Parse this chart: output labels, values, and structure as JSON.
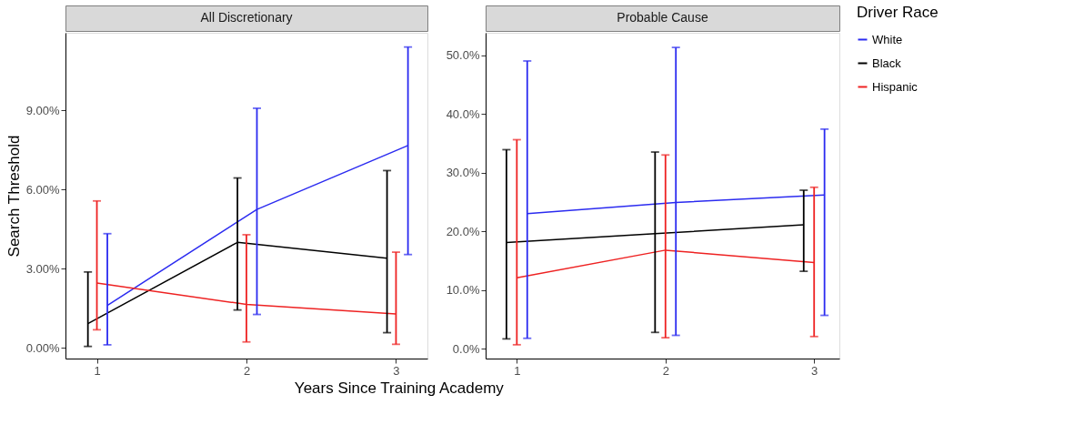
{
  "chart_data": [
    {
      "type": "line",
      "title": "All Discretionary",
      "xlabel": "Years Since Training Academy",
      "ylabel": "Search Threshold",
      "x": [
        1,
        2,
        3
      ],
      "xlim": [
        0.79,
        3.21
      ],
      "xticks": [
        1,
        2,
        3
      ],
      "ylim": [
        -0.4,
        11.94
      ],
      "yticks": [
        {
          "value": 0,
          "label": "0.00%"
        },
        {
          "value": 3,
          "label": "3.00%"
        },
        {
          "value": 6,
          "label": "6.00%"
        },
        {
          "value": 9,
          "label": "9.00%"
        }
      ],
      "grid": false,
      "legend_title": "Driver Race",
      "legend": "right",
      "series": [
        {
          "name": "White",
          "color": "#2b2bf0",
          "x": [
            1.07,
            2.07,
            3.08
          ],
          "values": [
            1.61,
            5.25,
            7.67
          ],
          "errors": [
            [
              0.12,
              4.33
            ],
            [
              1.27,
              9.08
            ],
            [
              3.54,
              11.4
            ]
          ]
        },
        {
          "name": "Black",
          "color": "#000000",
          "x": [
            0.94,
            1.94,
            2.94
          ],
          "values": [
            0.92,
            4.0,
            3.4
          ],
          "errors": [
            [
              0.06,
              2.88
            ],
            [
              1.44,
              6.44
            ],
            [
              0.58,
              6.72
            ]
          ]
        },
        {
          "name": "Hispanic",
          "color": "#ee2222",
          "values": [
            2.46,
            1.65,
            1.29
          ],
          "errors": [
            [
              0.69,
              5.57
            ],
            [
              0.23,
              4.29
            ],
            [
              0.14,
              3.63
            ]
          ]
        }
      ]
    },
    {
      "type": "line",
      "title": "Probable Cause",
      "legend": "right",
      "x": [
        1,
        2,
        3
      ],
      "xlim": [
        0.79,
        3.17
      ],
      "xticks": [
        1,
        2,
        3
      ],
      "ylim": [
        -1.65,
        53.8
      ],
      "yticks": [
        {
          "value": 0,
          "label": "0.0%"
        },
        {
          "value": 10,
          "label": "10.0%"
        },
        {
          "value": 20,
          "label": "20.0%"
        },
        {
          "value": 30,
          "label": "30.0%"
        },
        {
          "value": 40,
          "label": "40.0%"
        },
        {
          "value": 50,
          "label": "50.0%"
        }
      ],
      "grid": false,
      "series": [
        {
          "name": "White",
          "color": "#2b2bf0",
          "x": [
            1.07,
            2.07,
            3.07
          ],
          "values": [
            23.0,
            24.9,
            26.2
          ],
          "errors": [
            [
              1.8,
              49.0
            ],
            [
              2.3,
              51.3
            ],
            [
              5.7,
              37.4
            ]
          ]
        },
        {
          "name": "Black",
          "color": "#000000",
          "x": [
            0.93,
            1.93,
            2.93
          ],
          "values": [
            18.1,
            19.6,
            21.1
          ],
          "errors": [
            [
              1.7,
              33.9
            ],
            [
              2.8,
              33.5
            ],
            [
              13.2,
              27.0
            ]
          ]
        },
        {
          "name": "Hispanic",
          "color": "#ee2222",
          "values": [
            12.1,
            16.8,
            14.7
          ],
          "errors": [
            [
              0.7,
              35.6
            ],
            [
              1.9,
              33.0
            ],
            [
              2.1,
              27.5
            ]
          ]
        }
      ]
    }
  ]
}
